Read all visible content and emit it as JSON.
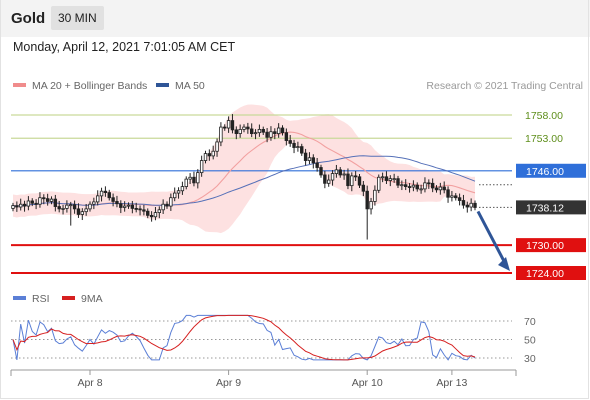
{
  "header": {
    "title": "Gold",
    "period": "30 MIN"
  },
  "datetime": "Monday, April 12, 2021 7:01:05 AM CET",
  "legend": {
    "ma20": {
      "label": "MA 20 + Bollinger Bands",
      "color": "#f08c8c"
    },
    "ma50": {
      "label": "MA 50",
      "color": "#2f5597"
    },
    "rsi": {
      "label": "RSI",
      "color": "#5b7fd6"
    },
    "rsi_ma": {
      "label": "9MA",
      "color": "#d62020"
    }
  },
  "copyright": "Research © 2021 Trading Central",
  "chart_data": {
    "type": "candlestick",
    "title": "Gold",
    "interval": "30 MIN",
    "x_tick_labels": [
      "Apr 8",
      "Apr 9",
      "Apr 10",
      "Apr 13"
    ],
    "x_tick_positions_index": [
      20,
      56,
      92,
      114
    ],
    "price_axis": {
      "min": 1721,
      "max": 1762
    },
    "levels": [
      {
        "value": 1758.0,
        "label": "1758.00",
        "kind": "resistance",
        "color": "#8aa832"
      },
      {
        "value": 1753.0,
        "label": "1753.00",
        "kind": "resistance",
        "color": "#8aa832"
      },
      {
        "value": 1746.0,
        "label": "1746.00",
        "kind": "pivot",
        "color": "#2f6fd9"
      },
      {
        "value": 1738.12,
        "label": "1738.12",
        "kind": "last-price",
        "color": "#333333"
      },
      {
        "value": 1730.0,
        "label": "1730.00",
        "kind": "support",
        "color": "#e01010"
      },
      {
        "value": 1724.0,
        "label": "1724.00",
        "kind": "support",
        "color": "#e01010"
      }
    ],
    "close": [
      1738.5,
      1738.2,
      1738.8,
      1738.4,
      1739.5,
      1739.0,
      1738.8,
      1740.2,
      1740.0,
      1739.4,
      1739.9,
      1738.3,
      1737.8,
      1737.9,
      1738.6,
      1738.7,
      1737.8,
      1736.6,
      1737.2,
      1737.8,
      1738.8,
      1739.3,
      1740.6,
      1741.6,
      1741.3,
      1740.2,
      1739.4,
      1738.9,
      1738.1,
      1738.4,
      1738.6,
      1737.9,
      1737.8,
      1737.6,
      1737.3,
      1736.4,
      1736.1,
      1737.0,
      1737.6,
      1738.8,
      1738.4,
      1740.2,
      1741.2,
      1741.7,
      1742.6,
      1744.2,
      1744.6,
      1743.4,
      1745.6,
      1748.2,
      1749.7,
      1749.2,
      1750.2,
      1752.2,
      1755.4,
      1755.2,
      1756.8,
      1754.8,
      1754.0,
      1754.9,
      1755.4,
      1755.0,
      1754.0,
      1754.2,
      1754.9,
      1754.3,
      1753.2,
      1754.4,
      1754.0,
      1755.2,
      1754.2,
      1752.5,
      1751.9,
      1751.0,
      1751.2,
      1749.8,
      1748.2,
      1748.8,
      1747.7,
      1746.7,
      1745.1,
      1743.3,
      1744.0,
      1745.4,
      1746.2,
      1745.1,
      1745.3,
      1742.8,
      1744.9,
      1744.7,
      1742.9,
      1741.6,
      1737.8,
      1739.4,
      1741.8,
      1744.6,
      1744.7,
      1743.9,
      1744.3,
      1744.3,
      1742.9,
      1743.0,
      1742.6,
      1742.5,
      1742.9,
      1742.1,
      1742.1,
      1743.4,
      1743.3,
      1742.3,
      1741.9,
      1742.5,
      1741.9,
      1740.3,
      1740.6,
      1740.2,
      1739.6,
      1738.6,
      1738.2,
      1739.0,
      1738.1
    ],
    "open": [
      1737.9,
      1738.5,
      1738.2,
      1738.8,
      1738.4,
      1739.5,
      1739.0,
      1738.8,
      1740.2,
      1740.0,
      1739.4,
      1739.9,
      1738.3,
      1737.8,
      1737.9,
      1738.6,
      1738.7,
      1737.8,
      1736.6,
      1737.2,
      1737.8,
      1738.8,
      1739.3,
      1740.6,
      1741.6,
      1741.3,
      1740.2,
      1739.4,
      1738.9,
      1738.1,
      1738.4,
      1738.6,
      1737.9,
      1737.8,
      1737.6,
      1737.3,
      1736.4,
      1736.1,
      1737.0,
      1737.6,
      1738.8,
      1738.4,
      1740.2,
      1741.2,
      1741.7,
      1742.6,
      1744.2,
      1744.6,
      1743.4,
      1745.6,
      1748.2,
      1749.7,
      1749.2,
      1750.2,
      1752.2,
      1755.4,
      1755.2,
      1756.8,
      1754.8,
      1754.0,
      1754.9,
      1755.4,
      1755.0,
      1754.0,
      1754.2,
      1754.9,
      1754.3,
      1753.2,
      1754.4,
      1754.0,
      1755.2,
      1754.2,
      1752.5,
      1751.9,
      1751.0,
      1751.2,
      1749.8,
      1748.2,
      1748.8,
      1747.7,
      1746.7,
      1745.1,
      1743.3,
      1744.0,
      1745.4,
      1746.2,
      1745.1,
      1745.3,
      1742.8,
      1744.9,
      1744.7,
      1742.9,
      1741.6,
      1737.8,
      1739.4,
      1741.8,
      1744.6,
      1744.7,
      1743.9,
      1744.3,
      1744.3,
      1742.9,
      1743.0,
      1742.6,
      1742.5,
      1742.9,
      1742.1,
      1742.1,
      1743.4,
      1743.3,
      1742.3,
      1741.9,
      1742.5,
      1741.9,
      1740.3,
      1740.6,
      1740.2,
      1739.6,
      1738.6,
      1738.2,
      1739.0
    ],
    "low_extremes": {
      "index_15": 1734.2,
      "index_92": 1731.2
    },
    "high_extreme": {
      "index_57": 1758.2
    },
    "rsi": {
      "axis_ticks": [
        30,
        50,
        70
      ],
      "range": [
        20,
        80
      ]
    },
    "forecast_arrow": {
      "from": 1738.12,
      "to": 1724.0
    }
  }
}
